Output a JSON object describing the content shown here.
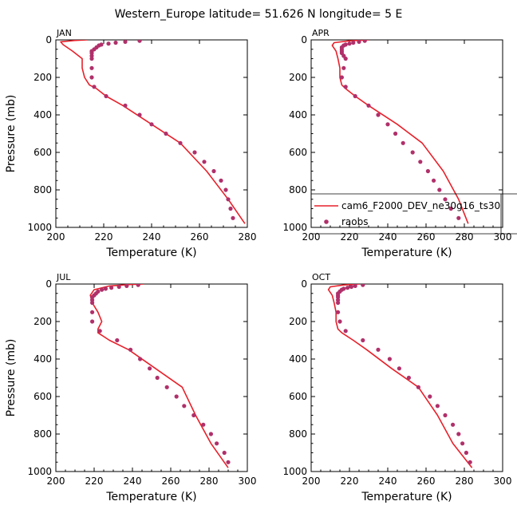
{
  "figure": {
    "title": "Western_Europe  latitude= 51.626 N longitude= 5 E"
  },
  "colors": {
    "model": "#e8202a",
    "obs": "#b0306a",
    "axis": "#000000"
  },
  "legend": {
    "placement": "inside APR panel, lower right",
    "items": [
      {
        "label": "cam6_F2000_DEV_ne30g16_ts30",
        "marker": "line",
        "color": "#e8202a"
      },
      {
        "label": "raobs",
        "marker": "dot",
        "color": "#b0306a"
      }
    ]
  },
  "chart_data": [
    {
      "type": "line",
      "title": "JAN",
      "xlabel": "Temperature (K)",
      "ylabel": "Pressure (mb)",
      "xlim": [
        200,
        280
      ],
      "ylim": [
        1000,
        0
      ],
      "xticks": [
        200,
        220,
        240,
        260,
        280
      ],
      "yticks": [
        0,
        200,
        400,
        600,
        800,
        1000
      ],
      "series": [
        {
          "name": "cam6_F2000_DEV_ne30g16_ts30",
          "style": "line",
          "x": [
            213,
            208,
            202,
            203,
            207,
            211,
            211,
            212,
            214,
            217,
            221,
            228,
            240,
            252,
            263,
            272,
            279
          ],
          "y": [
            0,
            3,
            10,
            25,
            60,
            100,
            150,
            200,
            240,
            260,
            300,
            350,
            450,
            550,
            700,
            850,
            980
          ]
        },
        {
          "name": "raobs",
          "style": "points",
          "x": [
            235,
            229,
            225,
            222,
            219,
            218,
            217,
            216,
            215,
            215,
            215,
            215,
            215,
            215,
            216,
            221,
            229,
            235,
            240,
            246,
            252,
            258,
            262,
            266,
            269,
            271,
            272,
            273,
            274
          ],
          "y": [
            5,
            10,
            15,
            20,
            25,
            30,
            40,
            50,
            60,
            70,
            85,
            100,
            150,
            200,
            250,
            300,
            350,
            400,
            450,
            500,
            550,
            600,
            650,
            700,
            750,
            800,
            850,
            900,
            950
          ]
        }
      ]
    },
    {
      "type": "line",
      "title": "APR",
      "xlabel": "Temperature (K)",
      "ylabel": "",
      "xlim": [
        200,
        300
      ],
      "ylim": [
        1000,
        0
      ],
      "xticks": [
        200,
        220,
        240,
        260,
        280,
        300
      ],
      "yticks": [
        0,
        200,
        400,
        600,
        800,
        1000
      ],
      "series": [
        {
          "name": "cam6_F2000_DEV_ne30g16_ts30",
          "style": "line",
          "x": [
            230,
            220,
            212,
            211,
            213,
            214,
            215,
            215,
            216,
            218,
            223,
            230,
            245,
            258,
            269,
            277,
            282
          ],
          "y": [
            0,
            5,
            15,
            30,
            60,
            100,
            150,
            200,
            240,
            260,
            300,
            350,
            450,
            550,
            700,
            850,
            980
          ]
        },
        {
          "name": "raobs",
          "style": "points",
          "x": [
            228,
            225,
            222,
            220,
            218,
            217,
            216,
            216,
            216,
            216,
            217,
            218,
            217,
            216,
            218,
            223,
            230,
            235,
            240,
            244,
            248,
            253,
            257,
            261,
            264,
            267,
            270,
            273,
            277
          ],
          "y": [
            5,
            10,
            15,
            20,
            25,
            30,
            40,
            50,
            60,
            70,
            85,
            100,
            150,
            200,
            250,
            300,
            350,
            400,
            450,
            500,
            550,
            600,
            650,
            700,
            750,
            800,
            850,
            900,
            950
          ]
        }
      ]
    },
    {
      "type": "line",
      "title": "JUL",
      "xlabel": "Temperature (K)",
      "ylabel": "Pressure (mb)",
      "xlim": [
        200,
        300
      ],
      "ylim": [
        1000,
        0
      ],
      "xticks": [
        200,
        220,
        240,
        260,
        280,
        300
      ],
      "yticks": [
        0,
        200,
        400,
        600,
        800,
        1000
      ],
      "series": [
        {
          "name": "cam6_F2000_DEV_ne30g16_ts30",
          "style": "line",
          "x": [
            246,
            238,
            228,
            220,
            218,
            219,
            222,
            224,
            222,
            222,
            228,
            238,
            252,
            266,
            273,
            281,
            290
          ],
          "y": [
            0,
            3,
            10,
            30,
            60,
            100,
            150,
            200,
            240,
            260,
            300,
            350,
            450,
            550,
            700,
            850,
            980
          ]
        },
        {
          "name": "raobs",
          "style": "points",
          "x": [
            243,
            237,
            233,
            229,
            226,
            224,
            222,
            221,
            220,
            219,
            219,
            219,
            219,
            219,
            223,
            232,
            239,
            244,
            249,
            253,
            258,
            263,
            267,
            272,
            277,
            281,
            284,
            288,
            290
          ],
          "y": [
            5,
            10,
            15,
            20,
            25,
            30,
            40,
            50,
            60,
            70,
            85,
            100,
            150,
            200,
            250,
            300,
            350,
            400,
            450,
            500,
            550,
            600,
            650,
            700,
            750,
            800,
            850,
            900,
            950
          ]
        }
      ]
    },
    {
      "type": "line",
      "title": "OCT",
      "xlabel": "Temperature (K)",
      "ylabel": "",
      "xlim": [
        200,
        300
      ],
      "ylim": [
        1000,
        0
      ],
      "xticks": [
        200,
        220,
        240,
        260,
        280,
        300
      ],
      "yticks": [
        0,
        200,
        400,
        600,
        800,
        1000
      ],
      "series": [
        {
          "name": "cam6_F2000_DEV_ne30g16_ts30",
          "style": "line",
          "x": [
            225,
            217,
            210,
            209,
            211,
            212,
            213,
            213,
            214,
            216,
            222,
            229,
            242,
            256,
            266,
            274,
            284
          ],
          "y": [
            0,
            5,
            15,
            30,
            60,
            100,
            150,
            200,
            240,
            260,
            300,
            350,
            450,
            550,
            700,
            850,
            980
          ]
        },
        {
          "name": "raobs",
          "style": "points",
          "x": [
            227,
            223,
            221,
            219,
            217,
            216,
            215,
            214,
            214,
            214,
            214,
            214,
            214,
            215,
            218,
            227,
            235,
            241,
            246,
            251,
            256,
            262,
            266,
            270,
            274,
            277,
            279,
            281,
            283
          ],
          "y": [
            5,
            10,
            15,
            20,
            25,
            30,
            40,
            50,
            60,
            70,
            85,
            100,
            150,
            200,
            250,
            300,
            350,
            400,
            450,
            500,
            550,
            600,
            650,
            700,
            750,
            800,
            850,
            900,
            950
          ]
        }
      ]
    }
  ]
}
